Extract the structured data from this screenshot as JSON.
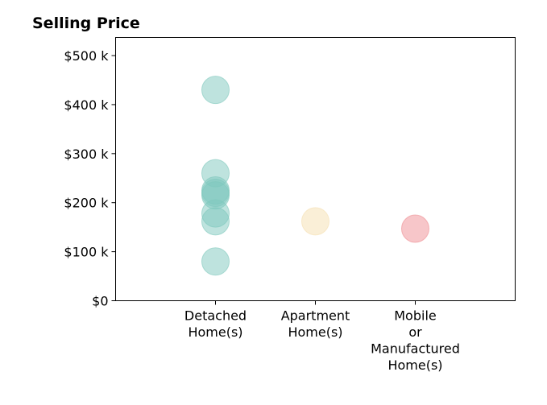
{
  "chart_data": {
    "type": "scatter",
    "title": "Selling Price",
    "xlabel": "",
    "ylabel": "",
    "categories": [
      [
        "Detached",
        "Home(s)"
      ],
      [
        "Apartment",
        "Home(s)"
      ],
      [
        "Mobile",
        "or",
        "Manufactured",
        "Home(s)"
      ]
    ],
    "y_ticks": [
      {
        "value": 0,
        "label": "$0"
      },
      {
        "value": 100000,
        "label": "$100 k"
      },
      {
        "value": 200000,
        "label": "$200 k"
      },
      {
        "value": 300000,
        "label": "$300 k"
      },
      {
        "value": 400000,
        "label": "$400 k"
      },
      {
        "value": 500000,
        "label": "$500 k"
      }
    ],
    "ylim": [
      0,
      537000
    ],
    "xlim": [
      -1,
      3
    ],
    "grid": false,
    "legend": "none",
    "points": [
      {
        "category": 0,
        "y": 430000,
        "color": "#7ec8bd"
      },
      {
        "category": 0,
        "y": 260000,
        "color": "#7ec8bd"
      },
      {
        "category": 0,
        "y": 225000,
        "color": "#7ec8bd"
      },
      {
        "category": 0,
        "y": 220000,
        "color": "#7ec8bd"
      },
      {
        "category": 0,
        "y": 215000,
        "color": "#7ec8bd"
      },
      {
        "category": 0,
        "y": 178000,
        "color": "#7ec8bd"
      },
      {
        "category": 0,
        "y": 162000,
        "color": "#7ec8bd"
      },
      {
        "category": 0,
        "y": 80000,
        "color": "#7ec8bd"
      },
      {
        "category": 1,
        "y": 162000,
        "color": "#f5dfb0"
      },
      {
        "category": 2,
        "y": 147000,
        "color": "#ef8d93"
      }
    ],
    "marker_opacity": 0.5
  }
}
